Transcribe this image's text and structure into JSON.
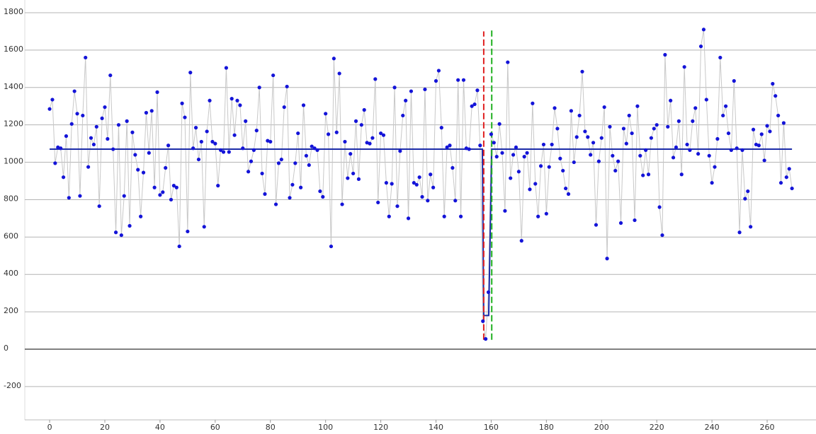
{
  "chart_data": {
    "type": "scatter",
    "x": [
      0,
      1,
      2,
      3,
      4,
      5,
      6,
      7,
      8,
      9,
      10,
      11,
      12,
      13,
      14,
      15,
      16,
      17,
      18,
      19,
      20,
      21,
      22,
      23,
      24,
      25,
      26,
      27,
      28,
      29,
      30,
      31,
      32,
      33,
      34,
      35,
      36,
      37,
      38,
      39,
      40,
      41,
      42,
      43,
      44,
      45,
      46,
      47,
      48,
      49,
      50,
      51,
      52,
      53,
      54,
      55,
      56,
      57,
      58,
      59,
      60,
      61,
      62,
      63,
      64,
      65,
      66,
      67,
      68,
      69,
      70,
      71,
      72,
      73,
      74,
      75,
      76,
      77,
      78,
      79,
      80,
      81,
      82,
      83,
      84,
      85,
      86,
      87,
      88,
      89,
      90,
      91,
      92,
      93,
      94,
      95,
      96,
      97,
      98,
      99,
      100,
      101,
      102,
      103,
      104,
      105,
      106,
      107,
      108,
      109,
      110,
      111,
      112,
      113,
      114,
      115,
      116,
      117,
      118,
      119,
      120,
      121,
      122,
      123,
      124,
      125,
      126,
      127,
      128,
      129,
      130,
      131,
      132,
      133,
      134,
      135,
      136,
      137,
      138,
      139,
      140,
      141,
      142,
      143,
      144,
      145,
      146,
      147,
      148,
      149,
      150,
      151,
      152,
      153,
      154,
      155,
      156,
      157,
      158,
      159,
      160,
      161,
      162,
      163,
      164,
      165,
      166,
      167,
      168,
      169,
      170,
      171,
      172,
      173,
      174,
      175,
      176,
      177,
      178,
      179,
      180,
      181,
      182,
      183,
      184,
      185,
      186,
      187,
      188,
      189,
      190,
      191,
      192,
      193,
      194,
      195,
      196,
      197,
      198,
      199,
      200,
      201,
      202,
      203,
      204,
      205,
      206,
      207,
      208,
      209,
      210,
      211,
      212,
      213,
      214,
      215,
      216,
      217,
      218,
      219,
      220,
      221,
      222,
      223,
      224,
      225,
      226,
      227,
      228,
      229,
      230,
      231,
      232,
      233,
      234,
      235,
      236,
      237,
      238,
      239,
      240,
      241,
      242,
      243,
      244,
      245,
      246,
      247,
      248,
      249,
      250,
      251,
      252,
      253,
      254,
      255,
      256,
      257,
      258,
      259,
      260,
      261,
      262,
      263,
      264,
      265,
      266,
      267,
      268,
      269
    ],
    "values": [
      1285,
      1335,
      995,
      1080,
      1075,
      920,
      1140,
      810,
      1205,
      1380,
      1260,
      820,
      1250,
      1560,
      975,
      1130,
      1095,
      1190,
      765,
      1235,
      1295,
      1125,
      1465,
      1070,
      625,
      1200,
      610,
      820,
      1220,
      660,
      1160,
      1040,
      960,
      710,
      945,
      1265,
      1050,
      1275,
      865,
      1375,
      825,
      840,
      970,
      1090,
      800,
      875,
      865,
      550,
      1315,
      1240,
      630,
      1480,
      1075,
      1185,
      1015,
      1110,
      655,
      1165,
      1330,
      1110,
      1100,
      875,
      1065,
      1055,
      1505,
      1055,
      1340,
      1145,
      1330,
      1305,
      1075,
      1220,
      950,
      1005,
      1065,
      1170,
      1400,
      940,
      830,
      1115,
      1110,
      1465,
      775,
      995,
      1015,
      1295,
      1405,
      810,
      880,
      995,
      1155,
      865,
      1305,
      1035,
      985,
      1085,
      1075,
      1065,
      845,
      815,
      1260,
      1150,
      550,
      1555,
      1160,
      1475,
      775,
      1110,
      915,
      1045,
      940,
      1220,
      910,
      1200,
      1280,
      1105,
      1100,
      1130,
      1445,
      785,
      1155,
      1145,
      890,
      710,
      885,
      1400,
      765,
      1060,
      1250,
      1330,
      700,
      1380,
      890,
      880,
      920,
      815,
      1390,
      795,
      935,
      865,
      1435,
      1490,
      1185,
      710,
      1080,
      1090,
      970,
      795,
      1440,
      710,
      1440,
      1075,
      1070,
      1300,
      1310,
      1385,
      1090,
      150,
      55,
      305,
      1150,
      1105,
      1030,
      1205,
      1050,
      740,
      1535,
      915,
      1040,
      1080,
      950,
      580,
      1030,
      1050,
      855,
      1315,
      885,
      710,
      980,
      1095,
      725,
      975,
      1095,
      1290,
      1180,
      1020,
      955,
      860,
      830,
      1275,
      1000,
      1135,
      1250,
      1485,
      1165,
      1135,
      1040,
      1105,
      665,
      1005,
      1130,
      1295,
      485,
      1190,
      1035,
      955,
      1005,
      675,
      1180,
      1100,
      1250,
      1155,
      690,
      1300,
      1035,
      930,
      1065,
      935,
      1130,
      1180,
      1200,
      760,
      610,
      1575,
      1190,
      1330,
      1025,
      1080,
      1220,
      935,
      1510,
      1095,
      1065,
      1220,
      1290,
      1045,
      1620,
      1710,
      1335,
      1035,
      890,
      975,
      1125,
      1560,
      1250,
      1300,
      1155,
      1065,
      1435,
      1075,
      625,
      1065,
      805,
      845,
      655,
      1175,
      1095,
      1090,
      1150,
      1010,
      1195,
      1165,
      1420,
      1355,
      1250,
      890,
      1210,
      920,
      965,
      860
    ],
    "color": "#1414d8",
    "line_color": "#c8c8c8",
    "step": {
      "x": [
        0,
        156.8,
        157.3,
        159.1,
        160.2,
        269
      ],
      "values": [
        1070,
        1070,
        180,
        180,
        1070,
        1070
      ],
      "color": "#1c2ca8"
    },
    "markers": [
      {
        "x": 157.3,
        "y": [
          50,
          1700
        ],
        "color": "#e02020"
      },
      {
        "x": 160.2,
        "y": [
          50,
          1705
        ],
        "color": "#20b020"
      }
    ],
    "xlim": [
      -9,
      277.7
    ],
    "ylim": [
      -378,
      1868
    ],
    "xticks": [
      0,
      20,
      40,
      60,
      80,
      100,
      120,
      140,
      160,
      180,
      200,
      220,
      240,
      260
    ],
    "yticks": [
      -200,
      0,
      200,
      400,
      600,
      800,
      1000,
      1200,
      1400,
      1600,
      1800
    ],
    "grid": true,
    "zero_line": true
  }
}
